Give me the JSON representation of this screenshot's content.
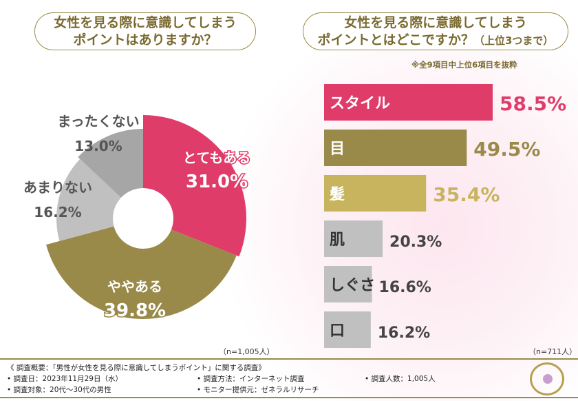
{
  "left": {
    "title_line1": "女性を見る際に意識してしまう",
    "title_line2": "ポイントはありますか？",
    "sample": "（n=1,005人）"
  },
  "right": {
    "title_line1": "女性を見る際に意識してしまう",
    "title_line2": "ポイントとはどこですか？",
    "title_suffix": "（上位3つまで）",
    "note": "※全9項目中上位6項目を抜粋",
    "sample": "（n=711人）"
  },
  "chart_data": [
    {
      "type": "pie",
      "categories": [
        "とてもある",
        "ややある",
        "あまりない",
        "まったくない"
      ],
      "values": [
        31.0,
        39.8,
        16.2,
        13.0
      ],
      "labels": [
        "31.0%",
        "39.8%",
        "16.2%",
        "13.0%"
      ],
      "colors": [
        "#e03c6a",
        "#9a8a4a",
        "#c0c0c0",
        "#a6a6a6"
      ],
      "style": "donut"
    },
    {
      "type": "bar",
      "orientation": "horizontal",
      "categories": [
        "スタイル",
        "目",
        "髪",
        "肌",
        "しぐさ",
        "口"
      ],
      "values": [
        58.5,
        49.5,
        35.4,
        20.3,
        16.6,
        16.2
      ],
      "labels": [
        "58.5%",
        "49.5%",
        "35.4%",
        "20.3%",
        "16.6%",
        "16.2%"
      ],
      "colors": [
        "#e03c6a",
        "#9a8a4a",
        "#c8b45e",
        "#c0c0c0",
        "#c0c0c0",
        "#c0c0c0"
      ]
    }
  ],
  "footer": {
    "heading": "《 調査概要：「男性が女性を見る際に意識してしまうポイント」に関する調査》",
    "date": "• 調査日：2023年11月29日（水）",
    "target": "• 調査対象：20代～30代の男性",
    "method": "• 調査方法：インターネット調査",
    "provider": "• モニター提供元：ゼネラルリサーチ",
    "count": "• 調査人数：1,005人"
  }
}
